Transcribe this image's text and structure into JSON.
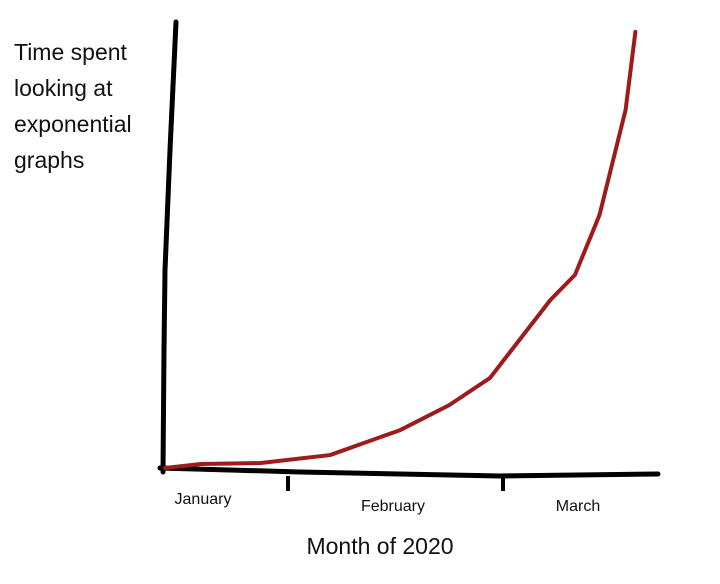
{
  "chart_data": {
    "type": "line",
    "ylabel": "Time spent looking at exponential graphs",
    "xlabel": "Month of 2020",
    "x": [
      0,
      0.22,
      0.58,
      1.01,
      1.44,
      1.74,
      1.99,
      2.36,
      2.51,
      2.66,
      2.82,
      2.88
    ],
    "series": [
      {
        "color": "#9e1b1b",
        "values": [
          0,
          0.9,
          1.1,
          2.9,
          8.5,
          14.1,
          20.2,
          37.7,
          43.3,
          56.7,
          80.3,
          97.8
        ]
      }
    ],
    "xlim": [
      0,
      3
    ],
    "ylim": [
      0,
      100
    ],
    "xticks": [
      {
        "value": 0.5,
        "label": "January"
      },
      {
        "value": 1.5,
        "label": "February"
      },
      {
        "value": 2.5,
        "label": "March"
      }
    ]
  }
}
